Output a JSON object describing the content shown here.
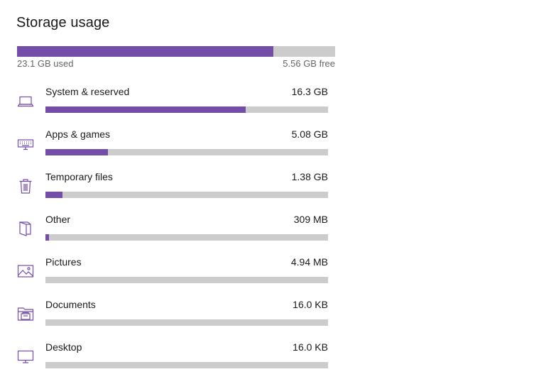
{
  "page": {
    "title": "Storage usage"
  },
  "total": {
    "used_label": "23.1 GB used",
    "free_label": "5.56 GB free",
    "used_fraction": 0.806
  },
  "categories": [
    {
      "name": "System & reserved",
      "size": "16.3 GB",
      "fraction": 0.708,
      "icon": "laptop-icon"
    },
    {
      "name": "Apps & games",
      "size": "5.08 GB",
      "fraction": 0.221,
      "icon": "keyboard-icon"
    },
    {
      "name": "Temporary files",
      "size": "1.38 GB",
      "fraction": 0.06,
      "icon": "trash-icon"
    },
    {
      "name": "Other",
      "size": "309 MB",
      "fraction": 0.013,
      "icon": "document-fold-icon"
    },
    {
      "name": "Pictures",
      "size": "4.94 MB",
      "fraction": 0.0,
      "icon": "picture-icon"
    },
    {
      "name": "Documents",
      "size": "16.0 KB",
      "fraction": 0.0,
      "icon": "documents-folder-icon"
    },
    {
      "name": "Desktop",
      "size": "16.0 KB",
      "fraction": 0.0,
      "icon": "monitor-icon"
    }
  ],
  "colors": {
    "accent": "#744da9",
    "track": "#cccccc"
  }
}
